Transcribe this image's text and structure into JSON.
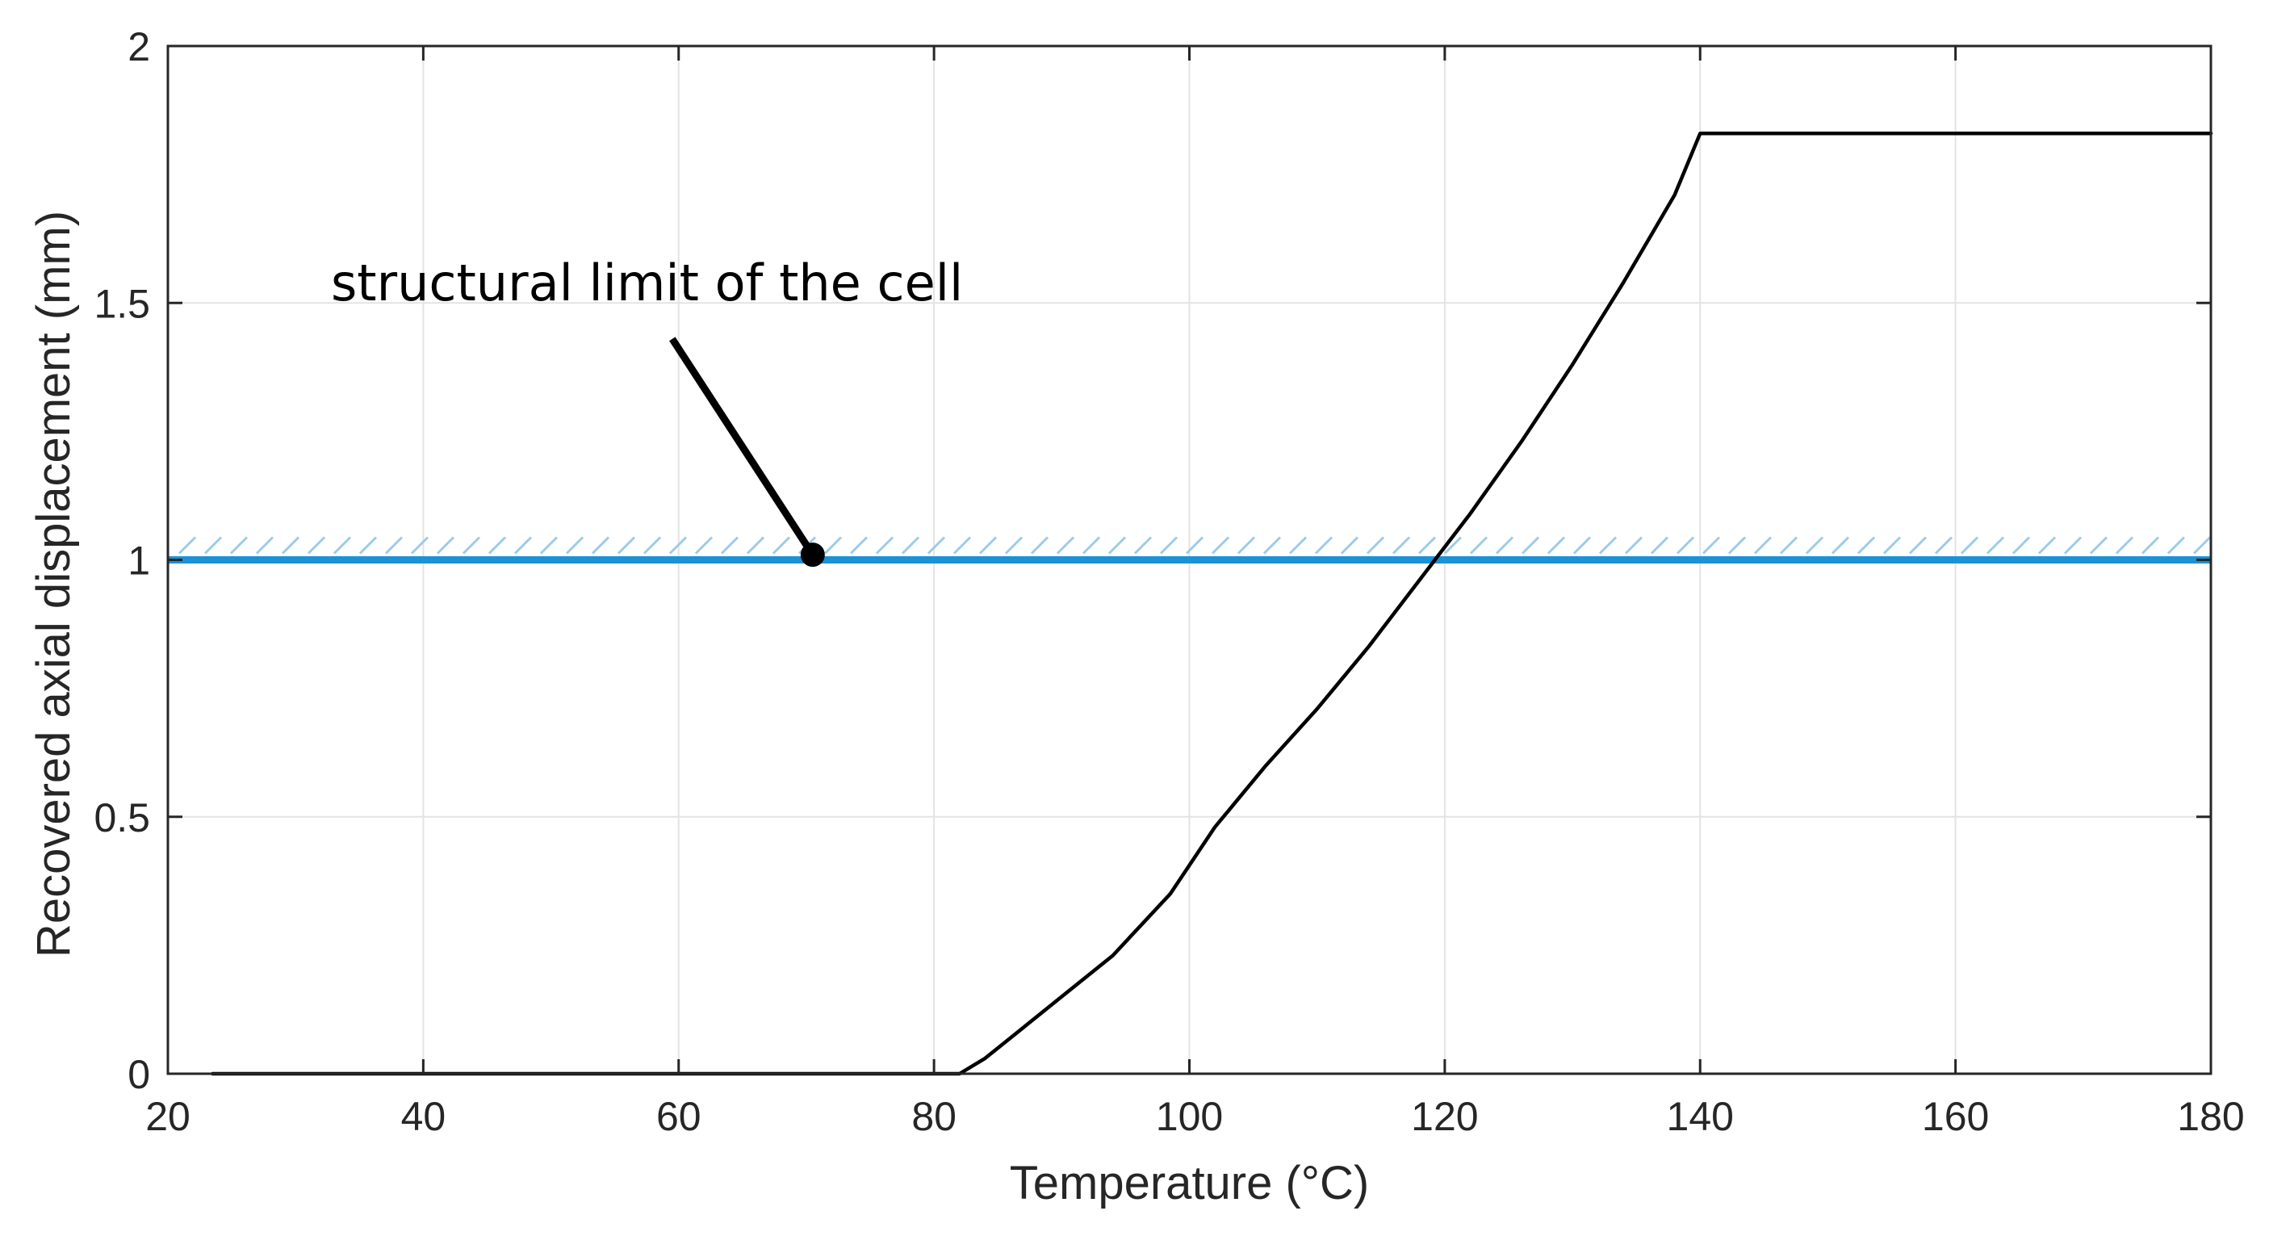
{
  "chart_data": {
    "type": "line",
    "title": "",
    "xlabel": "Temperature (°C)",
    "ylabel": "Recovered axial displacement (mm)",
    "xlim": [
      20,
      180
    ],
    "ylim": [
      0,
      2
    ],
    "grid": true,
    "x_ticks": [
      20,
      40,
      60,
      80,
      100,
      120,
      140,
      160,
      180
    ],
    "y_ticks": [
      0,
      0.5,
      1,
      1.5,
      2
    ],
    "x_tick_labels": [
      "20",
      "40",
      "60",
      "80",
      "100",
      "120",
      "140",
      "160",
      "180"
    ],
    "y_tick_labels": [
      "0",
      "0.5",
      "1",
      "1.5",
      "2"
    ],
    "series": [
      {
        "name": "Recovered axial displacement",
        "color": "#000000",
        "x": [
          23.5,
          82,
          84,
          87,
          90,
          94,
          98.5,
          102,
          106,
          110,
          114,
          118,
          122,
          126,
          130,
          134,
          138,
          140,
          180
        ],
        "y": [
          0,
          0,
          0.03,
          0.09,
          0.15,
          0.23,
          0.35,
          0.48,
          0.6,
          0.71,
          0.83,
          0.96,
          1.09,
          1.23,
          1.38,
          1.54,
          1.71,
          1.83,
          1.83
        ]
      }
    ],
    "reference_lines": [
      {
        "name": "structural limit of the cell",
        "orientation": "horizontal",
        "value": 1.0,
        "color": "#1b91d6",
        "hatch_color": "#9ccbea",
        "hatched": true
      }
    ],
    "annotations": [
      {
        "text": "structural limit of the cell",
        "arrow_from": [
          59.5,
          1.43
        ],
        "arrow_to": [
          70.5,
          1.01
        ],
        "marker": "dot",
        "color": "#000000"
      }
    ]
  }
}
